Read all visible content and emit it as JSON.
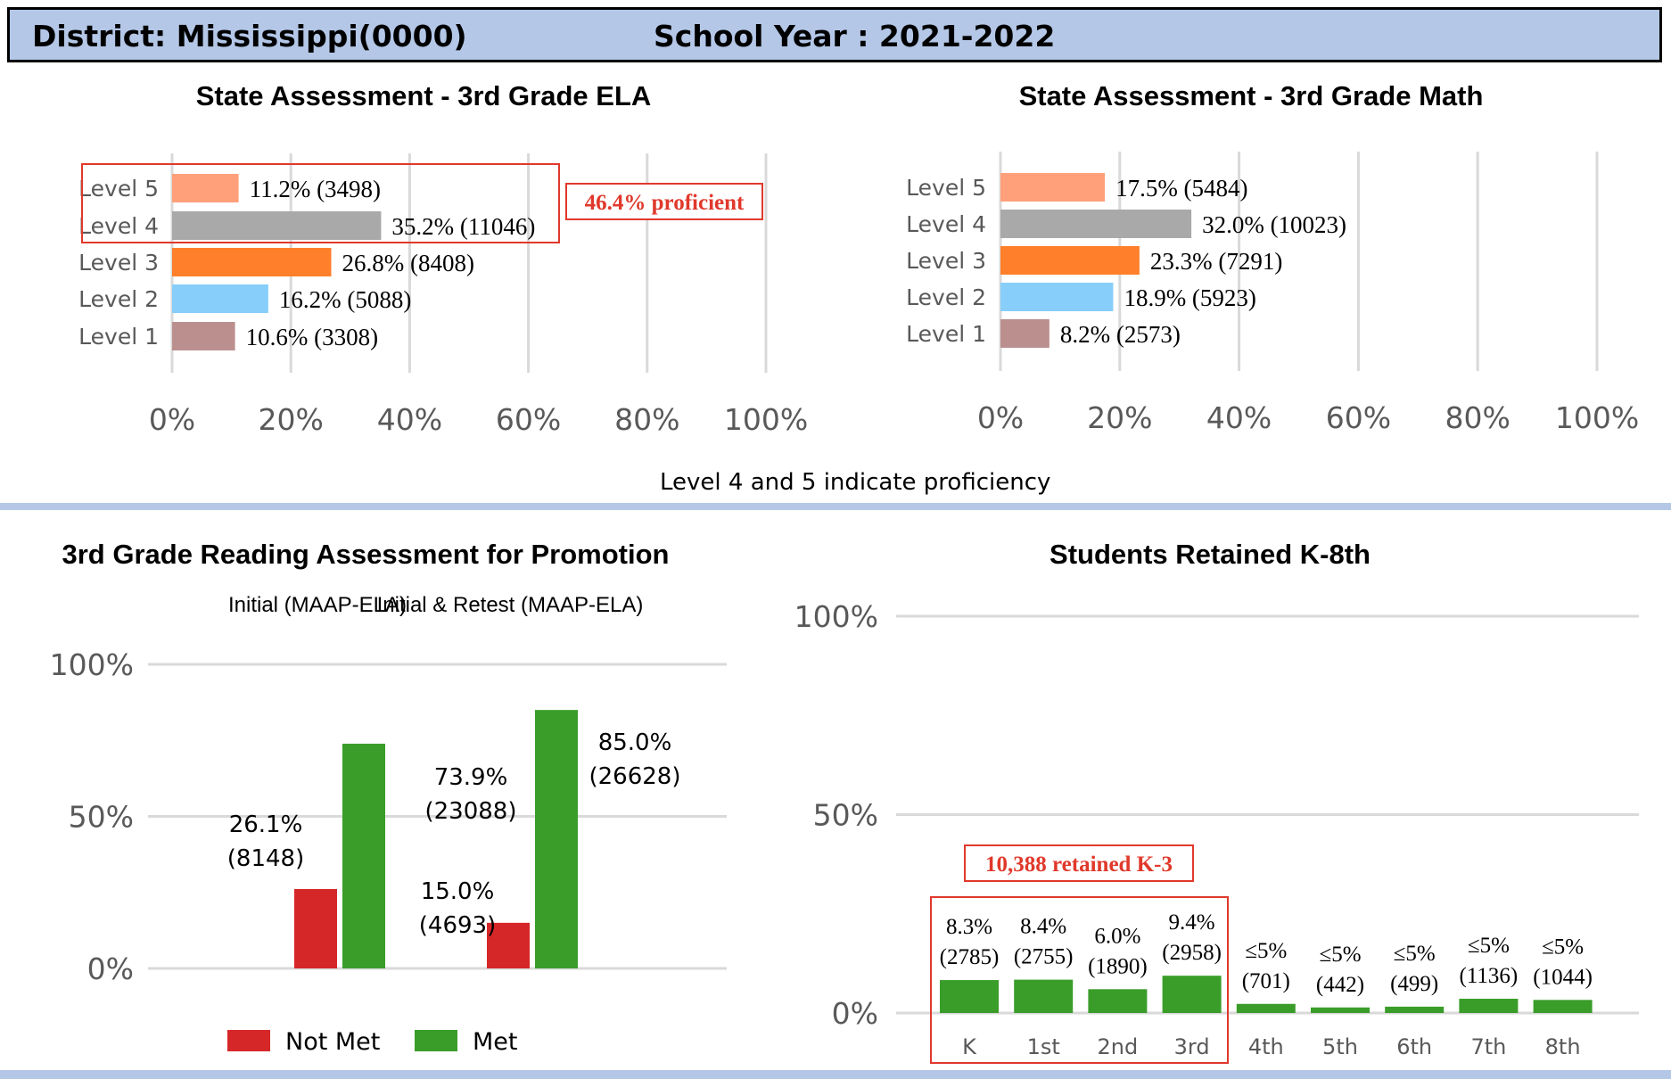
{
  "header": {
    "district": "District: Mississippi(0000)",
    "school_year": "School Year : 2021-2022"
  },
  "proficiency_note": "Level 4 and 5 indicate proficiency",
  "colors": {
    "level5": "#ffa07a",
    "level4": "#a9a9a9",
    "level3": "#ff7f2a",
    "level2": "#87cefa",
    "level1": "#bc8f8f",
    "not_met": "#d62728",
    "met": "#3a9d2a",
    "callout": "#e0392b",
    "header_bg": "#b4c7e7"
  },
  "chart_data": [
    {
      "id": "ela",
      "type": "bar",
      "orientation": "horizontal",
      "title": "State Assessment - 3rd Grade ELA",
      "categories": [
        "Level 5",
        "Level 4",
        "Level 3",
        "Level 2",
        "Level 1"
      ],
      "values": [
        11.2,
        35.2,
        26.8,
        16.2,
        10.6
      ],
      "labels": [
        "11.2% (3498)",
        "35.2% (11046)",
        "26.8% (8408)",
        "16.2% (5088)",
        "10.6% (3308)"
      ],
      "xlim": [
        0,
        100
      ],
      "xticks": [
        "0%",
        "20%",
        "40%",
        "60%",
        "80%",
        "100%"
      ],
      "grid": true,
      "callout": "46.4% proficient"
    },
    {
      "id": "math",
      "type": "bar",
      "orientation": "horizontal",
      "title": "State Assessment - 3rd Grade Math",
      "categories": [
        "Level 5",
        "Level 4",
        "Level 3",
        "Level 2",
        "Level 1"
      ],
      "values": [
        17.5,
        32.0,
        23.3,
        18.9,
        8.2
      ],
      "labels": [
        "17.5% (5484)",
        "32.0% (10023)",
        "23.3% (7291)",
        "18.9% (5923)",
        "8.2% (2573)"
      ],
      "xlim": [
        0,
        100
      ],
      "xticks": [
        "0%",
        "20%",
        "40%",
        "60%",
        "80%",
        "100%"
      ],
      "grid": true
    },
    {
      "id": "promotion",
      "type": "bar",
      "title": "3rd Grade Reading Assessment for Promotion",
      "categories": [
        "Initial (MAAP-ELA)",
        "Initial & Retest (MAAP-ELA)"
      ],
      "series": [
        {
          "name": "Not Met",
          "values": [
            26.1,
            15.0
          ],
          "labels": [
            [
              "26.1%",
              "(8148)"
            ],
            [
              "15.0%",
              "(4693)"
            ]
          ]
        },
        {
          "name": "Met",
          "values": [
            73.9,
            85.0
          ],
          "labels": [
            [
              "73.9%",
              "(23088)"
            ],
            [
              "85.0%",
              "(26628)"
            ]
          ]
        }
      ],
      "ylim": [
        0,
        100
      ],
      "yticks": [
        "0%",
        "50%",
        "100%"
      ],
      "grid": true,
      "legend": "bottom"
    },
    {
      "id": "retained",
      "type": "bar",
      "title": "Students Retained K-8th",
      "categories": [
        "K",
        "1st",
        "2nd",
        "3rd",
        "4th",
        "5th",
        "6th",
        "7th",
        "8th"
      ],
      "values": [
        8.3,
        8.4,
        6.0,
        9.4,
        2.3,
        1.4,
        1.6,
        3.6,
        3.3
      ],
      "labels": [
        [
          "8.3%",
          "(2785)"
        ],
        [
          "8.4%",
          "(2755)"
        ],
        [
          "6.0%",
          "(1890)"
        ],
        [
          "9.4%",
          "(2958)"
        ],
        [
          "≤5%",
          "(701)"
        ],
        [
          "≤5%",
          "(442)"
        ],
        [
          "≤5%",
          "(499)"
        ],
        [
          "≤5%",
          "(1136)"
        ],
        [
          "≤5%",
          "(1044)"
        ]
      ],
      "ylim": [
        0,
        100
      ],
      "yticks": [
        "0%",
        "50%",
        "100%"
      ],
      "grid": true,
      "callout": "10,388 retained K-3"
    }
  ]
}
